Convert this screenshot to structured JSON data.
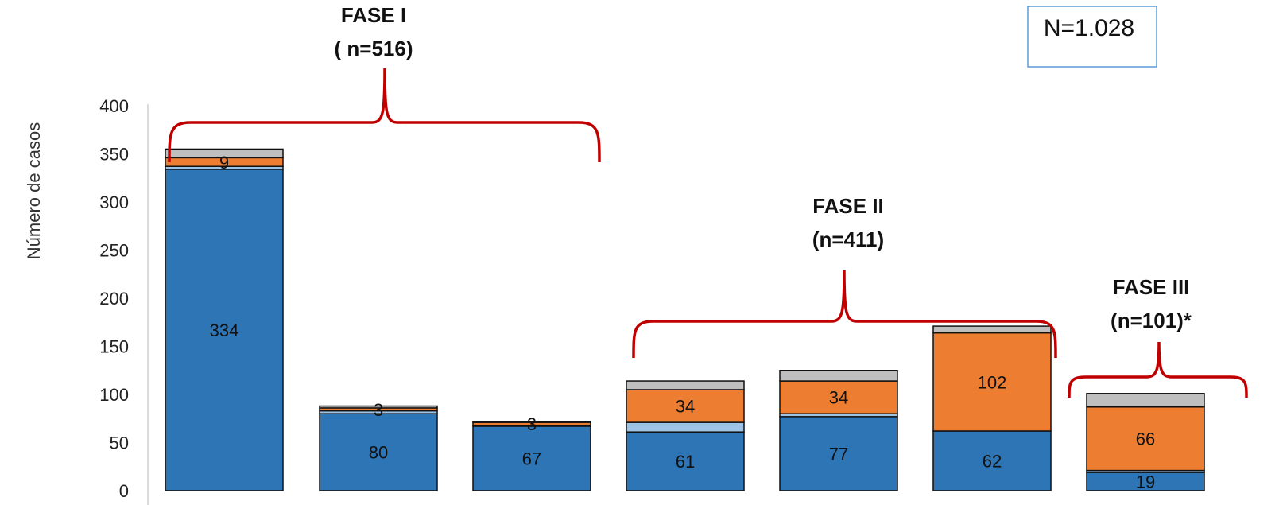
{
  "chart_data": {
    "type": "bar",
    "stacked": true,
    "ylabel": "Número de casos",
    "ylim": [
      0,
      400
    ],
    "yticks": [
      0,
      50,
      100,
      150,
      200,
      250,
      300,
      350,
      400
    ],
    "grid": false,
    "categories": [
      "",
      "",
      "",
      "",
      "",
      "",
      ""
    ],
    "colors": [
      "#2e75b6",
      "#9dc3e6",
      "#ed7d31",
      "#bfbfbf"
    ],
    "series": [
      {
        "values": [
          334,
          80,
          67,
          61,
          77,
          62,
          19
        ],
        "labels": [
          "334",
          "80",
          "67",
          "61",
          "77",
          "62",
          "19"
        ]
      },
      {
        "values": [
          3,
          3,
          1,
          10,
          3,
          0,
          2
        ],
        "labels": [
          "",
          "",
          "",
          "",
          "",
          "",
          ""
        ]
      },
      {
        "values": [
          9,
          3,
          3,
          34,
          34,
          102,
          66
        ],
        "labels": [
          "9",
          "3",
          "3",
          "34",
          "34",
          "102",
          "66"
        ]
      },
      {
        "values": [
          9,
          2,
          1,
          9,
          11,
          7,
          14
        ],
        "labels": [
          "",
          "",
          "",
          "",
          "",
          "",
          ""
        ]
      }
    ],
    "annotations": {
      "total": "N=1.028",
      "phases": [
        {
          "title": "FASE I",
          "n": "( n=516)"
        },
        {
          "title": "FASE II",
          "n": "(n=411)"
        },
        {
          "title": "FASE III",
          "n": "(n=101)*"
        }
      ]
    }
  }
}
